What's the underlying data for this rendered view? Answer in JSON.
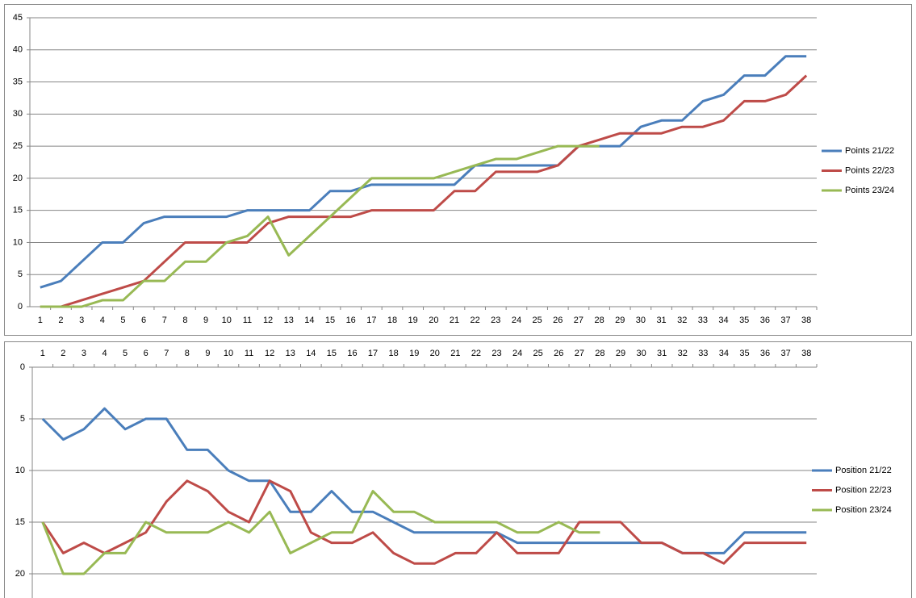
{
  "chart_data": [
    {
      "type": "line",
      "categories": [
        1,
        2,
        3,
        4,
        5,
        6,
        7,
        8,
        9,
        10,
        11,
        12,
        13,
        14,
        15,
        16,
        17,
        18,
        19,
        20,
        21,
        22,
        23,
        24,
        25,
        26,
        27,
        28,
        29,
        30,
        31,
        32,
        33,
        34,
        35,
        36,
        37,
        38
      ],
      "series": [
        {
          "name": "Points 21/22",
          "color": "#4a7ebb",
          "values": [
            3,
            4,
            7,
            10,
            10,
            13,
            14,
            14,
            14,
            14,
            15,
            15,
            15,
            15,
            18,
            18,
            19,
            19,
            19,
            19,
            19,
            22,
            22,
            22,
            22,
            22,
            25,
            25,
            25,
            28,
            29,
            29,
            32,
            33,
            36,
            36,
            39,
            39
          ]
        },
        {
          "name": "Points 22/23",
          "color": "#be4b48",
          "values": [
            0,
            0,
            1,
            2,
            3,
            4,
            7,
            10,
            10,
            10,
            10,
            13,
            14,
            14,
            14,
            14,
            15,
            15,
            15,
            15,
            18,
            18,
            21,
            21,
            21,
            22,
            25,
            26,
            27,
            27,
            27,
            28,
            28,
            29,
            32,
            32,
            33,
            36
          ]
        },
        {
          "name": "Points 23/24",
          "color": "#98b954",
          "values": [
            0,
            0,
            0,
            1,
            1,
            4,
            4,
            7,
            7,
            10,
            11,
            14,
            8,
            11,
            14,
            17,
            20,
            20,
            20,
            20,
            21,
            22,
            23,
            23,
            24,
            25,
            25,
            25,
            null,
            null,
            null,
            null,
            null,
            null,
            null,
            null,
            null,
            null
          ]
        }
      ],
      "ylim": [
        0,
        45
      ],
      "yticks": [
        0,
        5,
        10,
        15,
        20,
        25,
        30,
        35,
        40,
        45
      ],
      "grid": true,
      "legend": "right",
      "y_reversed": false,
      "x_axis_position": "bottom"
    },
    {
      "type": "line",
      "categories": [
        1,
        2,
        3,
        4,
        5,
        6,
        7,
        8,
        9,
        10,
        11,
        12,
        13,
        14,
        15,
        16,
        17,
        18,
        19,
        20,
        21,
        22,
        23,
        24,
        25,
        26,
        27,
        28,
        29,
        30,
        31,
        32,
        33,
        34,
        35,
        36,
        37,
        38
      ],
      "series": [
        {
          "name": "Position 21/22",
          "color": "#4a7ebb",
          "values": [
            5,
            7,
            6,
            4,
            6,
            5,
            5,
            8,
            8,
            10,
            11,
            11,
            14,
            14,
            12,
            14,
            14,
            15,
            16,
            16,
            16,
            16,
            16,
            17,
            17,
            17,
            17,
            17,
            17,
            17,
            17,
            18,
            18,
            18,
            16,
            16,
            16,
            16
          ]
        },
        {
          "name": "Position 22/23",
          "color": "#be4b48",
          "values": [
            15,
            18,
            17,
            18,
            17,
            16,
            13,
            11,
            12,
            14,
            15,
            11,
            12,
            16,
            17,
            17,
            16,
            18,
            19,
            19,
            18,
            18,
            16,
            18,
            18,
            18,
            15,
            15,
            15,
            17,
            17,
            18,
            18,
            19,
            17,
            17,
            17,
            17
          ]
        },
        {
          "name": "Position 23/24",
          "color": "#98b954",
          "values": [
            15,
            20,
            20,
            18,
            18,
            15,
            16,
            16,
            16,
            15,
            16,
            14,
            18,
            17,
            16,
            16,
            12,
            14,
            14,
            15,
            15,
            15,
            15,
            16,
            16,
            15,
            16,
            16,
            null,
            null,
            null,
            null,
            null,
            null,
            null,
            null,
            null,
            null
          ]
        }
      ],
      "ylim": [
        0,
        20
      ],
      "yticks": [
        0,
        5,
        10,
        15,
        20
      ],
      "grid": true,
      "legend": "right",
      "y_reversed": true,
      "x_axis_position": "top"
    }
  ]
}
